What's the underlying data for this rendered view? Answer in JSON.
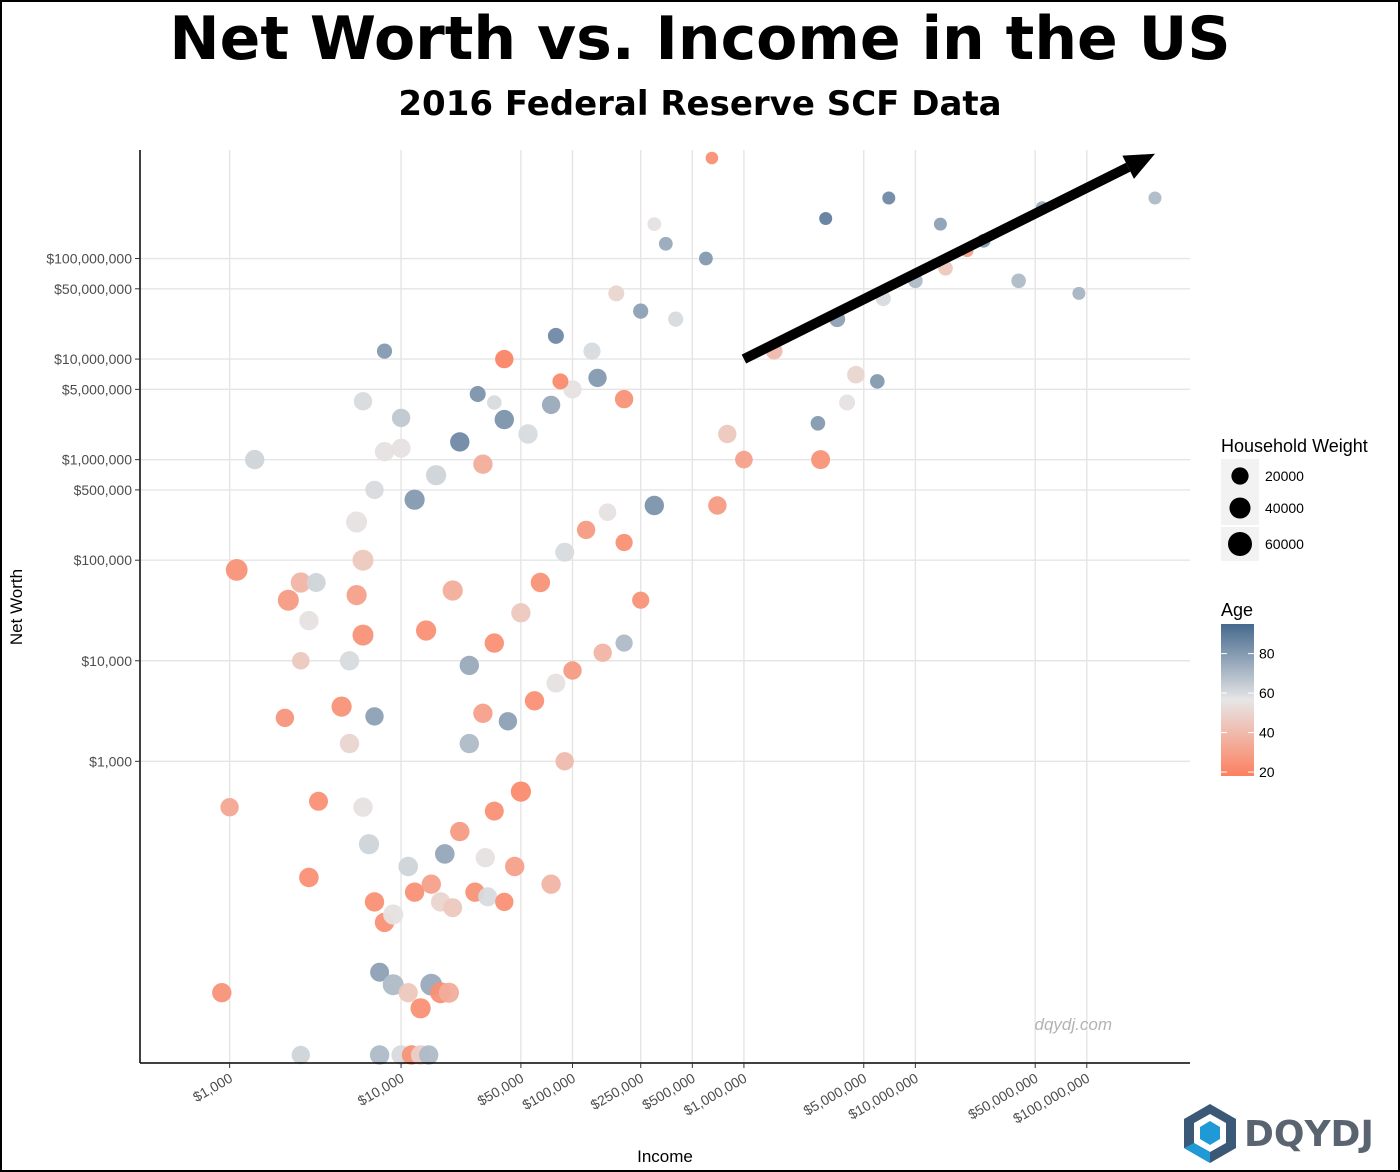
{
  "title": "Net Worth vs. Income in the US",
  "subtitle": "2016 Federal Reserve SCF Data",
  "watermark": "dqydj.com",
  "brand": "DQYDJ",
  "colors": {
    "age_low": "#fc8060",
    "age_mid": "#e6e6e6",
    "age_high": "#46698e",
    "grid": "#e5e5e5",
    "arrow": "#000000"
  },
  "chart_data": {
    "type": "scatter",
    "xlabel": "Income",
    "ylabel": "Net Worth",
    "x_scale": "log",
    "y_scale": "log",
    "xlim": [
      300,
      400000000
    ],
    "ylim": [
      1,
      1200000000
    ],
    "x_ticks": [
      {
        "value": 1000,
        "label": "$1,000"
      },
      {
        "value": 10000,
        "label": "$10,000"
      },
      {
        "value": 50000,
        "label": "$50,000"
      },
      {
        "value": 100000,
        "label": "$100,000"
      },
      {
        "value": 250000,
        "label": "$250,000"
      },
      {
        "value": 500000,
        "label": "$500,000"
      },
      {
        "value": 1000000,
        "label": "$1,000,000"
      },
      {
        "value": 5000000,
        "label": "$5,000,000"
      },
      {
        "value": 10000000,
        "label": "$10,000,000"
      },
      {
        "value": 50000000,
        "label": "$50,000,000"
      },
      {
        "value": 100000000,
        "label": "$100,000,000"
      }
    ],
    "y_ticks": [
      {
        "value": 1000,
        "label": "$1,000"
      },
      {
        "value": 10000,
        "label": "$10,000"
      },
      {
        "value": 100000,
        "label": "$100,000"
      },
      {
        "value": 500000,
        "label": "$500,000"
      },
      {
        "value": 1000000,
        "label": "$1,000,000"
      },
      {
        "value": 5000000,
        "label": "$5,000,000"
      },
      {
        "value": 10000000,
        "label": "$10,000,000"
      },
      {
        "value": 50000000,
        "label": "$50,000,000"
      },
      {
        "value": 100000000,
        "label": "$100,000,000"
      }
    ],
    "grid": true,
    "legend": {
      "placement": "right",
      "size": {
        "title": "Household Weight",
        "entries": [
          {
            "label": "20000",
            "value": 20000
          },
          {
            "label": "40000",
            "value": 40000
          },
          {
            "label": "60000",
            "value": 60000
          }
        ]
      },
      "color": {
        "title": "Age",
        "breaks": [
          {
            "label": "80",
            "value": 80
          },
          {
            "label": "60",
            "value": 60
          },
          {
            "label": "40",
            "value": 40
          },
          {
            "label": "20",
            "value": 20
          }
        ],
        "range": [
          18,
          95
        ]
      }
    },
    "trend_arrow": {
      "from": {
        "income": 1000000,
        "net_worth": 10000000
      },
      "to": {
        "income": 250000000,
        "net_worth": 1100000000
      }
    },
    "points": [
      {
        "income": 1400,
        "net_worth": 1000000,
        "age": 62,
        "weight": 30000
      },
      {
        "income": 1100,
        "net_worth": 80000,
        "age": 25,
        "weight": 45000
      },
      {
        "income": 2200,
        "net_worth": 40000,
        "age": 28,
        "weight": 40000
      },
      {
        "income": 2600,
        "net_worth": 60000,
        "age": 38,
        "weight": 35000
      },
      {
        "income": 2900,
        "net_worth": 25000,
        "age": 55,
        "weight": 30000
      },
      {
        "income": 3200,
        "net_worth": 60000,
        "age": 62,
        "weight": 28000
      },
      {
        "income": 2100,
        "net_worth": 2700,
        "age": 26,
        "weight": 25000
      },
      {
        "income": 2600,
        "net_worth": 10000,
        "age": 45,
        "weight": 22000
      },
      {
        "income": 3300,
        "net_worth": 400,
        "age": 24,
        "weight": 28000
      },
      {
        "income": 1000,
        "net_worth": 350,
        "age": 33,
        "weight": 25000
      },
      {
        "income": 2900,
        "net_worth": 70,
        "age": 24,
        "weight": 32000
      },
      {
        "income": 900,
        "net_worth": 5,
        "age": 25,
        "weight": 30000
      },
      {
        "income": 2600,
        "net_worth": 1.2,
        "age": 62,
        "weight": 25000
      },
      {
        "income": 8000,
        "net_worth": 12000000,
        "age": 80,
        "weight": 12000
      },
      {
        "income": 6000,
        "net_worth": 3800000,
        "age": 60,
        "weight": 25000
      },
      {
        "income": 10000,
        "net_worth": 2600000,
        "age": 66,
        "weight": 25000
      },
      {
        "income": 7000,
        "net_worth": 500000,
        "age": 60,
        "weight": 25000
      },
      {
        "income": 8000,
        "net_worth": 1200000,
        "age": 55,
        "weight": 30000
      },
      {
        "income": 10000,
        "net_worth": 1300000,
        "age": 55,
        "weight": 28000
      },
      {
        "income": 5500,
        "net_worth": 240000,
        "age": 55,
        "weight": 40000
      },
      {
        "income": 6000,
        "net_worth": 100000,
        "age": 45,
        "weight": 40000
      },
      {
        "income": 5500,
        "net_worth": 45000,
        "age": 30,
        "weight": 35000
      },
      {
        "income": 6000,
        "net_worth": 18000,
        "age": 25,
        "weight": 40000
      },
      {
        "income": 5000,
        "net_worth": 10000,
        "age": 60,
        "weight": 30000
      },
      {
        "income": 4500,
        "net_worth": 3500,
        "age": 25,
        "weight": 35000
      },
      {
        "income": 5000,
        "net_worth": 1500,
        "age": 50,
        "weight": 30000
      },
      {
        "income": 7000,
        "net_worth": 2800,
        "age": 78,
        "weight": 25000
      },
      {
        "income": 6000,
        "net_worth": 350,
        "age": 55,
        "weight": 30000
      },
      {
        "income": 6500,
        "net_worth": 150,
        "age": 62,
        "weight": 35000
      },
      {
        "income": 7000,
        "net_worth": 40,
        "age": 24,
        "weight": 30000
      },
      {
        "income": 8000,
        "net_worth": 25,
        "age": 24,
        "weight": 30000
      },
      {
        "income": 7500,
        "net_worth": 8,
        "age": 78,
        "weight": 28000
      },
      {
        "income": 9000,
        "net_worth": 6,
        "age": 70,
        "weight": 40000
      },
      {
        "income": 11000,
        "net_worth": 5,
        "age": 45,
        "weight": 30000
      },
      {
        "income": 13000,
        "net_worth": 3.5,
        "age": 24,
        "weight": 35000
      },
      {
        "income": 15000,
        "net_worth": 6,
        "age": 75,
        "weight": 45000
      },
      {
        "income": 17000,
        "net_worth": 5,
        "age": 24,
        "weight": 40000
      },
      {
        "income": 19000,
        "net_worth": 5,
        "age": 35,
        "weight": 35000
      },
      {
        "income": 7500,
        "net_worth": 1.2,
        "age": 70,
        "weight": 30000
      },
      {
        "income": 10000,
        "net_worth": 1.2,
        "age": 60,
        "weight": 30000
      },
      {
        "income": 11500,
        "net_worth": 1.2,
        "age": 25,
        "weight": 30000
      },
      {
        "income": 13000,
        "net_worth": 1.2,
        "age": 48,
        "weight": 30000
      },
      {
        "income": 14500,
        "net_worth": 1.2,
        "age": 70,
        "weight": 30000
      },
      {
        "income": 9000,
        "net_worth": 30,
        "age": 55,
        "weight": 35000
      },
      {
        "income": 11000,
        "net_worth": 90,
        "age": 62,
        "weight": 32000
      },
      {
        "income": 12000,
        "net_worth": 50,
        "age": 24,
        "weight": 30000
      },
      {
        "income": 15000,
        "net_worth": 60,
        "age": 30,
        "weight": 30000
      },
      {
        "income": 17000,
        "net_worth": 40,
        "age": 50,
        "weight": 30000
      },
      {
        "income": 20000,
        "net_worth": 35,
        "age": 45,
        "weight": 28000
      },
      {
        "income": 27000,
        "net_worth": 50,
        "age": 25,
        "weight": 30000
      },
      {
        "income": 32000,
        "net_worth": 45,
        "age": 60,
        "weight": 28000
      },
      {
        "income": 40000,
        "net_worth": 40,
        "age": 24,
        "weight": 25000
      },
      {
        "income": 31000,
        "net_worth": 110,
        "age": 55,
        "weight": 30000
      },
      {
        "income": 46000,
        "net_worth": 90,
        "age": 30,
        "weight": 30000
      },
      {
        "income": 75000,
        "net_worth": 60,
        "age": 38,
        "weight": 30000
      },
      {
        "income": 18000,
        "net_worth": 120,
        "age": 76,
        "weight": 32000
      },
      {
        "income": 22000,
        "net_worth": 200,
        "age": 28,
        "weight": 30000
      },
      {
        "income": 35000,
        "net_worth": 320,
        "age": 24,
        "weight": 28000
      },
      {
        "income": 90000,
        "net_worth": 1000,
        "age": 40,
        "weight": 25000
      },
      {
        "income": 50000,
        "net_worth": 500,
        "age": 22,
        "weight": 35000
      },
      {
        "income": 25000,
        "net_worth": 1500,
        "age": 70,
        "weight": 30000
      },
      {
        "income": 30000,
        "net_worth": 3000,
        "age": 30,
        "weight": 30000
      },
      {
        "income": 42000,
        "net_worth": 2500,
        "age": 78,
        "weight": 25000
      },
      {
        "income": 60000,
        "net_worth": 4000,
        "age": 24,
        "weight": 30000
      },
      {
        "income": 80000,
        "net_worth": 6000,
        "age": 55,
        "weight": 28000
      },
      {
        "income": 100000,
        "net_worth": 8000,
        "age": 28,
        "weight": 25000
      },
      {
        "income": 150000,
        "net_worth": 12000,
        "age": 38,
        "weight": 25000
      },
      {
        "income": 200000,
        "net_worth": 15000,
        "age": 70,
        "weight": 20000
      },
      {
        "income": 250000,
        "net_worth": 40000,
        "age": 25,
        "weight": 20000
      },
      {
        "income": 14000,
        "net_worth": 20000,
        "age": 24,
        "weight": 35000
      },
      {
        "income": 20000,
        "net_worth": 50000,
        "age": 35,
        "weight": 35000
      },
      {
        "income": 25000,
        "net_worth": 9000,
        "age": 75,
        "weight": 30000
      },
      {
        "income": 35000,
        "net_worth": 15000,
        "age": 24,
        "weight": 30000
      },
      {
        "income": 50000,
        "net_worth": 30000,
        "age": 45,
        "weight": 30000
      },
      {
        "income": 65000,
        "net_worth": 60000,
        "age": 25,
        "weight": 30000
      },
      {
        "income": 90000,
        "net_worth": 120000,
        "age": 60,
        "weight": 28000
      },
      {
        "income": 120000,
        "net_worth": 200000,
        "age": 28,
        "weight": 25000
      },
      {
        "income": 160000,
        "net_worth": 300000,
        "age": 55,
        "weight": 22000
      },
      {
        "income": 200000,
        "net_worth": 150000,
        "age": 24,
        "weight": 20000
      },
      {
        "income": 300000,
        "net_worth": 350000,
        "age": 82,
        "weight": 30000
      },
      {
        "income": 12000,
        "net_worth": 400000,
        "age": 80,
        "weight": 35000
      },
      {
        "income": 16000,
        "net_worth": 700000,
        "age": 62,
        "weight": 35000
      },
      {
        "income": 22000,
        "net_worth": 1500000,
        "age": 85,
        "weight": 30000
      },
      {
        "income": 30000,
        "net_worth": 900000,
        "age": 35,
        "weight": 30000
      },
      {
        "income": 40000,
        "net_worth": 2500000,
        "age": 82,
        "weight": 30000
      },
      {
        "income": 55000,
        "net_worth": 1800000,
        "age": 60,
        "weight": 30000
      },
      {
        "income": 75000,
        "net_worth": 3500000,
        "age": 75,
        "weight": 25000
      },
      {
        "income": 100000,
        "net_worth": 5000000,
        "age": 55,
        "weight": 25000
      },
      {
        "income": 140000,
        "net_worth": 6500000,
        "age": 80,
        "weight": 25000
      },
      {
        "income": 200000,
        "net_worth": 4000000,
        "age": 25,
        "weight": 25000
      },
      {
        "income": 28000,
        "net_worth": 4500000,
        "age": 82,
        "weight": 15000
      },
      {
        "income": 40000,
        "net_worth": 10000000,
        "age": 20,
        "weight": 25000
      },
      {
        "income": 85000,
        "net_worth": 6000000,
        "age": 22,
        "weight": 15000
      },
      {
        "income": 80000,
        "net_worth": 17000000,
        "age": 85,
        "weight": 15000
      },
      {
        "income": 130000,
        "net_worth": 12000000,
        "age": 60,
        "weight": 20000
      },
      {
        "income": 35000,
        "net_worth": 3700000,
        "age": 60,
        "weight": 10000
      },
      {
        "income": 180000,
        "net_worth": 45000000,
        "age": 50,
        "weight": 15000
      },
      {
        "income": 250000,
        "net_worth": 30000000,
        "age": 78,
        "weight": 12000
      },
      {
        "income": 400000,
        "net_worth": 25000000,
        "age": 60,
        "weight": 12000
      },
      {
        "income": 350000,
        "net_worth": 140000000,
        "age": 75,
        "weight": 8000
      },
      {
        "income": 300000,
        "net_worth": 220000000,
        "age": 55,
        "weight": 8000
      },
      {
        "income": 600000,
        "net_worth": 100000000,
        "age": 80,
        "weight": 8000
      },
      {
        "income": 650000,
        "net_worth": 1000000000,
        "age": 24,
        "weight": 5000
      },
      {
        "income": 700000,
        "net_worth": 350000,
        "age": 28,
        "weight": 25000
      },
      {
        "income": 800000,
        "net_worth": 1800000,
        "age": 45,
        "weight": 25000
      },
      {
        "income": 1000000,
        "net_worth": 1000000,
        "age": 30,
        "weight": 22000
      },
      {
        "income": 2800000,
        "net_worth": 1000000,
        "age": 25,
        "weight": 28000
      },
      {
        "income": 2700000,
        "net_worth": 2300000,
        "age": 80,
        "weight": 10000
      },
      {
        "income": 4000000,
        "net_worth": 3700000,
        "age": 55,
        "weight": 15000
      },
      {
        "income": 6000000,
        "net_worth": 6000000,
        "age": 80,
        "weight": 10000
      },
      {
        "income": 1500000,
        "net_worth": 12000000,
        "age": 40,
        "weight": 18000
      },
      {
        "income": 4500000,
        "net_worth": 7000000,
        "age": 50,
        "weight": 22000
      },
      {
        "income": 3500000,
        "net_worth": 25000000,
        "age": 78,
        "weight": 15000
      },
      {
        "income": 6500000,
        "net_worth": 40000000,
        "age": 60,
        "weight": 12000
      },
      {
        "income": 10000000,
        "net_worth": 60000000,
        "age": 70,
        "weight": 10000
      },
      {
        "income": 15000000,
        "net_worth": 80000000,
        "age": 45,
        "weight": 10000
      },
      {
        "income": 25000000,
        "net_worth": 150000000,
        "age": 80,
        "weight": 8000
      },
      {
        "income": 40000000,
        "net_worth": 60000000,
        "age": 70,
        "weight": 10000
      },
      {
        "income": 55000000,
        "net_worth": 320000000,
        "age": 75,
        "weight": 6000
      },
      {
        "income": 90000000,
        "net_worth": 45000000,
        "age": 72,
        "weight": 6000
      },
      {
        "income": 250000000,
        "net_worth": 400000000,
        "age": 70,
        "weight": 6000
      },
      {
        "income": 7000000,
        "net_worth": 400000000,
        "age": 85,
        "weight": 6000
      },
      {
        "income": 3000000,
        "net_worth": 250000000,
        "age": 88,
        "weight": 6000
      },
      {
        "income": 14000000,
        "net_worth": 220000000,
        "age": 78,
        "weight": 6000
      },
      {
        "income": 20000000,
        "net_worth": 120000000,
        "age": 30,
        "weight": 6000
      }
    ]
  }
}
